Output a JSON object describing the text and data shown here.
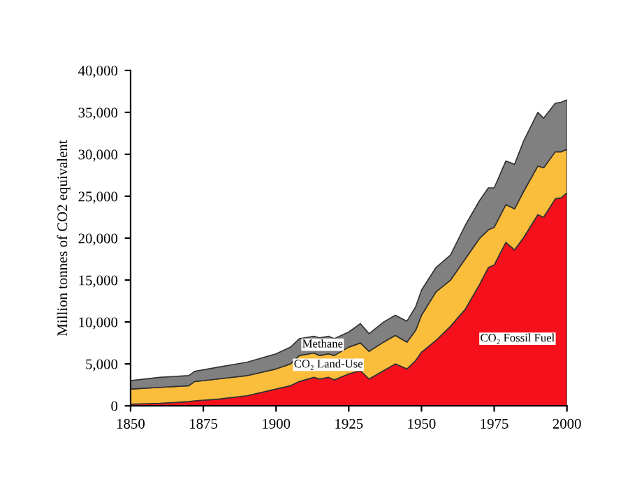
{
  "chart_data": {
    "type": "area",
    "stacked": true,
    "ylabel": "Million tonnes of CO2 equivalent",
    "x": [
      1850,
      1860,
      1870,
      1872,
      1880,
      1890,
      1900,
      1905,
      1908,
      1913,
      1915,
      1918,
      1920,
      1925,
      1929,
      1932,
      1937,
      1941,
      1945,
      1948,
      1950,
      1955,
      1960,
      1965,
      1970,
      1973,
      1975,
      1979,
      1982,
      1985,
      1990,
      1992,
      1996,
      1998,
      2000
    ],
    "series": [
      {
        "name": "CO₂ Fossil Fuel",
        "color": "#f5101c",
        "values": [
          200,
          300,
          500,
          600,
          800,
          1200,
          2000,
          2400,
          2900,
          3400,
          3200,
          3400,
          3100,
          3800,
          4200,
          3200,
          4200,
          5000,
          4400,
          5400,
          6400,
          7800,
          9500,
          11500,
          14500,
          16500,
          16800,
          19500,
          18600,
          20000,
          22800,
          22500,
          24700,
          24800,
          25400
        ]
      },
      {
        "name": "CO₂ Land-Use",
        "color": "#fbbd3c",
        "values": [
          1800,
          1900,
          1900,
          2300,
          2400,
          2400,
          2400,
          2600,
          3100,
          2900,
          2800,
          2800,
          2900,
          3200,
          3300,
          3300,
          3400,
          3400,
          3200,
          3600,
          4400,
          5800,
          5500,
          6000,
          5500,
          4500,
          4500,
          4500,
          4900,
          5500,
          5800,
          5900,
          5600,
          5500,
          5200
        ]
      },
      {
        "name": "Methane",
        "color": "#808080",
        "values": [
          1000,
          1200,
          1200,
          1200,
          1400,
          1600,
          1800,
          2000,
          2000,
          2000,
          2100,
          2100,
          2000,
          1800,
          2300,
          2100,
          2400,
          2400,
          2500,
          2800,
          3000,
          2900,
          3000,
          4000,
          4500,
          5000,
          4700,
          5200,
          5300,
          6000,
          6400,
          5900,
          5800,
          5900,
          5900
        ]
      }
    ],
    "xlim": [
      1850,
      2000
    ],
    "xticks": [
      1850,
      1875,
      1900,
      1925,
      1950,
      1975,
      2000
    ],
    "ylim": [
      0,
      40000
    ],
    "yticks": [
      {
        "value": 0,
        "label": "0"
      },
      {
        "value": 5000,
        "label": "5,000"
      },
      {
        "value": 10000,
        "label": "10,000"
      },
      {
        "value": 15000,
        "label": "15,000"
      },
      {
        "value": 20000,
        "label": "20,000"
      },
      {
        "value": 25000,
        "label": "25,000"
      },
      {
        "value": 30000,
        "label": "30,000"
      },
      {
        "value": 35000,
        "label": "35,000"
      },
      {
        "value": 40000,
        "label": "40,000"
      }
    ],
    "grid": false,
    "legend": false
  }
}
